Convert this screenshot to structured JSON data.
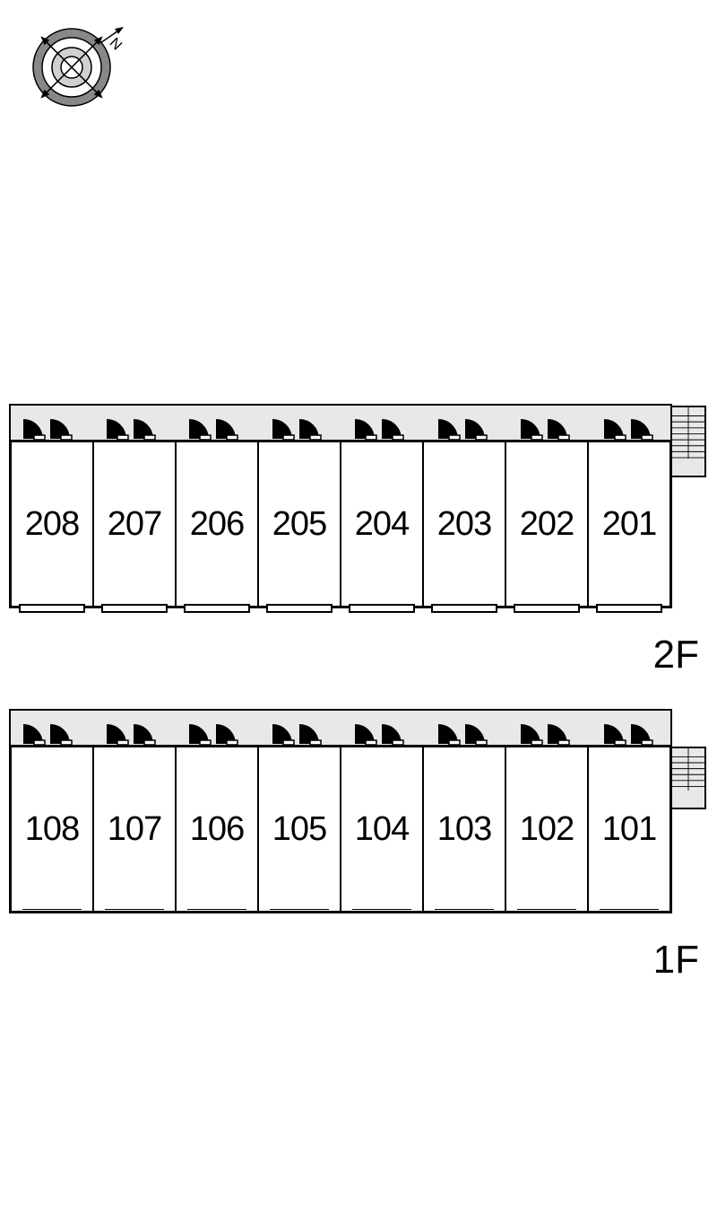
{
  "compass": {
    "north_label": "N",
    "diameter": 85,
    "ring_color": "#888888",
    "inner_color": "#cccccc",
    "stroke_color": "#000000"
  },
  "floors": [
    {
      "label": "2F",
      "units": [
        "208",
        "207",
        "206",
        "205",
        "204",
        "203",
        "202",
        "201"
      ],
      "has_balconies": true
    },
    {
      "label": "1F",
      "units": [
        "108",
        "107",
        "106",
        "105",
        "104",
        "103",
        "102",
        "101"
      ],
      "has_balconies": false
    }
  ],
  "colors": {
    "background": "#ffffff",
    "corridor_fill": "#e8e8e8",
    "stroke": "#000000",
    "text": "#000000"
  },
  "layout": {
    "unit_count_per_floor": 8,
    "unit_width": 92,
    "unit_height": 185,
    "corridor_height": 40,
    "font_size_unit": 38,
    "font_size_floor": 44
  }
}
